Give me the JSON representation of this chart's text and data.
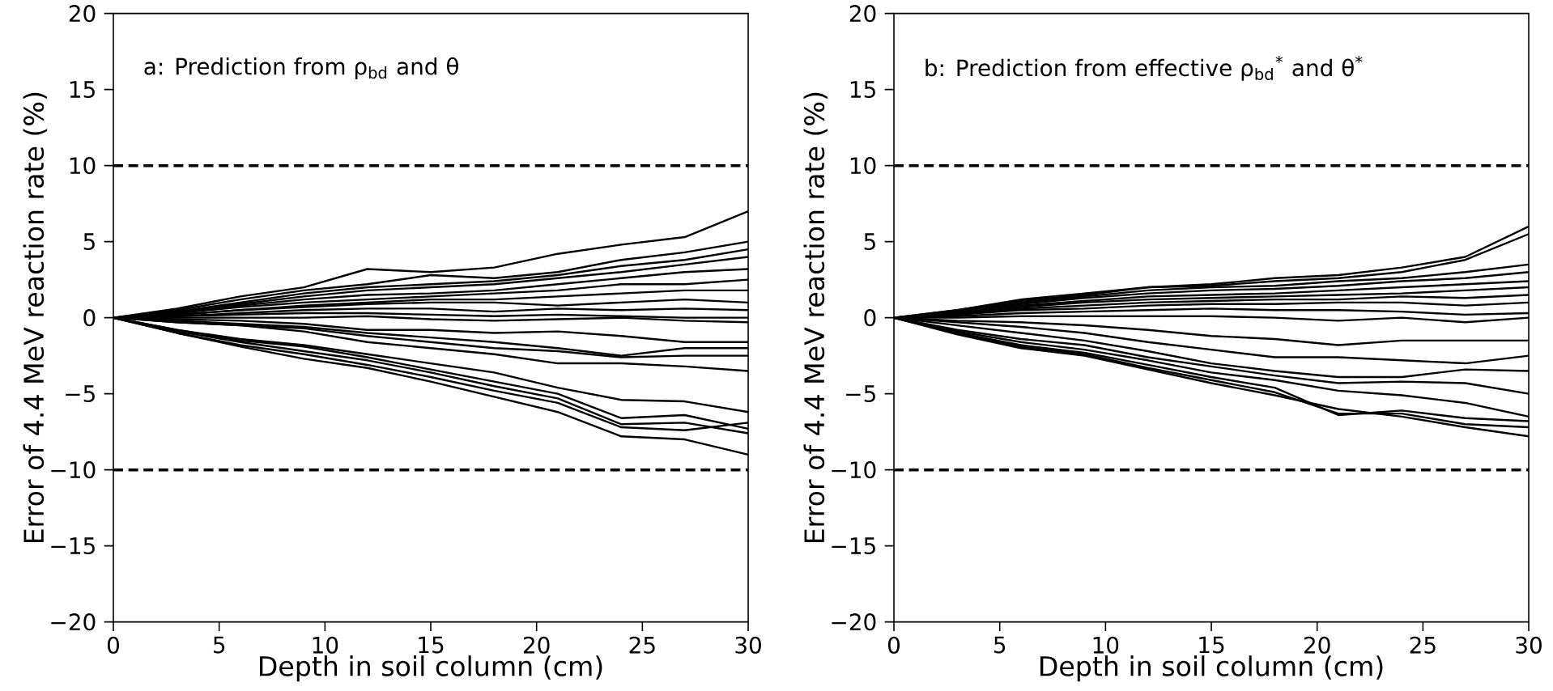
{
  "chart_data": [
    {
      "type": "line",
      "color": "#000000",
      "line_style": "solid",
      "xlabel": "Depth in soil column (cm)",
      "ylabel": "Error of 4.4 MeV reaction rate (%)",
      "annotations": [
        "a: Prediction from ρ$_{bd}$ and θ"
      ],
      "xlim": [
        0,
        30
      ],
      "ylim": [
        -20,
        20
      ],
      "xticks": [
        0,
        5,
        10,
        15,
        20,
        25,
        30
      ],
      "yticks": [
        {
          "value": -20,
          "label": "−20"
        },
        {
          "value": -15,
          "label": "−15"
        },
        {
          "value": -10,
          "label": "−10"
        },
        {
          "value": -5,
          "label": "−5"
        },
        0,
        5,
        10,
        15,
        20
      ],
      "ref_lines": [
        {
          "axis": "y",
          "value": 10,
          "line_style": "dashed"
        },
        {
          "axis": "y",
          "value": -10,
          "line_style": "dashed"
        }
      ],
      "x": [
        0,
        3,
        6,
        9,
        12,
        15,
        18,
        21,
        24,
        27,
        30
      ],
      "series": [
        {
          "values": [
            0,
            0.6,
            1.4,
            2.0,
            3.2,
            3.0,
            3.3,
            4.2,
            4.8,
            5.3,
            7.0
          ]
        },
        {
          "values": [
            0,
            0.5,
            1.2,
            1.8,
            2.2,
            2.8,
            2.6,
            3.0,
            3.8,
            4.3,
            5.0
          ]
        },
        {
          "values": [
            0,
            0.4,
            1.0,
            1.6,
            2.0,
            2.2,
            2.4,
            2.8,
            3.4,
            3.8,
            4.5
          ]
        },
        {
          "values": [
            0,
            0.4,
            0.9,
            1.4,
            1.8,
            2.0,
            2.2,
            2.6,
            3.0,
            3.5,
            4.0
          ]
        },
        {
          "values": [
            0,
            0.3,
            0.8,
            1.2,
            1.5,
            1.6,
            1.8,
            2.2,
            2.6,
            3.0,
            3.2
          ]
        },
        {
          "values": [
            0,
            0.3,
            0.7,
            1.0,
            1.2,
            1.4,
            1.6,
            1.8,
            2.2,
            2.2,
            2.5
          ]
        },
        {
          "values": [
            0,
            0.2,
            0.5,
            0.8,
            1.0,
            1.2,
            1.2,
            1.4,
            1.6,
            1.8,
            1.8
          ]
        },
        {
          "values": [
            0,
            0.2,
            0.5,
            0.7,
            0.9,
            1.0,
            1.0,
            0.8,
            1.0,
            1.2,
            1.0
          ]
        },
        {
          "values": [
            0,
            0.1,
            0.3,
            0.5,
            0.6,
            0.6,
            0.4,
            0.6,
            0.5,
            0.6,
            0.5
          ]
        },
        {
          "values": [
            0,
            0.1,
            0.2,
            0.3,
            0.3,
            0.2,
            0.1,
            0.2,
            0.1,
            0.0,
            0.0
          ]
        },
        {
          "values": [
            0,
            0.0,
            0.0,
            0.0,
            0.1,
            -0.1,
            -0.2,
            -0.1,
            0.0,
            -0.2,
            -0.3
          ]
        },
        {
          "values": [
            0,
            -0.1,
            -0.2,
            -0.4,
            -0.8,
            -0.8,
            -1.0,
            -0.9,
            -1.2,
            -1.6,
            -1.6
          ]
        },
        {
          "values": [
            0,
            -0.2,
            -0.4,
            -0.6,
            -1.0,
            -1.3,
            -1.6,
            -2.0,
            -2.5,
            -2.0,
            -2.0
          ]
        },
        {
          "values": [
            0,
            -0.3,
            -0.5,
            -0.7,
            -1.2,
            -1.6,
            -2.0,
            -2.2,
            -2.6,
            -2.5,
            -2.5
          ]
        },
        {
          "values": [
            0,
            -0.3,
            -0.5,
            -0.9,
            -1.6,
            -2.0,
            -2.4,
            -3.0,
            -3.0,
            -3.2,
            -3.5
          ]
        },
        {
          "values": [
            0,
            -0.8,
            -1.4,
            -1.8,
            -2.4,
            -3.0,
            -3.6,
            -4.6,
            -5.4,
            -5.5,
            -6.2
          ]
        },
        {
          "values": [
            0,
            -0.8,
            -1.5,
            -1.9,
            -2.6,
            -3.4,
            -4.2,
            -5.0,
            -6.6,
            -6.4,
            -7.3
          ]
        },
        {
          "values": [
            0,
            -0.9,
            -1.6,
            -2.2,
            -2.8,
            -3.6,
            -4.5,
            -5.3,
            -7.0,
            -6.9,
            -7.6
          ]
        },
        {
          "values": [
            0,
            -1.0,
            -1.8,
            -2.4,
            -3.1,
            -3.9,
            -4.8,
            -5.6,
            -7.2,
            -7.4,
            -6.9
          ]
        },
        {
          "values": [
            0,
            -1.0,
            -1.9,
            -2.7,
            -3.3,
            -4.2,
            -5.2,
            -6.2,
            -7.8,
            -8.0,
            -9.0
          ]
        }
      ]
    },
    {
      "type": "line",
      "color": "#000000",
      "line_style": "solid",
      "xlabel": "Depth in soil column (cm)",
      "ylabel": "Error of 4.4 MeV reaction rate (%)",
      "annotations": [
        "b: Prediction from effective ρ$_{bd}$$^{*}$ and θ$^{*}$"
      ],
      "xlim": [
        0,
        30
      ],
      "ylim": [
        -20,
        20
      ],
      "xticks": [
        0,
        5,
        10,
        15,
        20,
        25,
        30
      ],
      "yticks": [
        {
          "value": -20,
          "label": "−20"
        },
        {
          "value": -15,
          "label": "−15"
        },
        {
          "value": -10,
          "label": "−10"
        },
        {
          "value": -5,
          "label": "−5"
        },
        0,
        5,
        10,
        15,
        20
      ],
      "ref_lines": [
        {
          "axis": "y",
          "value": 10,
          "line_style": "dashed"
        },
        {
          "axis": "y",
          "value": -10,
          "line_style": "dashed"
        }
      ],
      "x": [
        0,
        3,
        6,
        9,
        12,
        15,
        18,
        21,
        24,
        27,
        30
      ],
      "series": [
        {
          "values": [
            0,
            0.5,
            1.2,
            1.6,
            2.0,
            2.2,
            2.6,
            2.8,
            3.3,
            4.0,
            6.0
          ]
        },
        {
          "values": [
            0,
            0.5,
            1.1,
            1.5,
            2.0,
            2.1,
            2.4,
            2.6,
            3.0,
            3.8,
            5.5
          ]
        },
        {
          "values": [
            0,
            0.4,
            1.0,
            1.4,
            1.8,
            2.0,
            2.1,
            2.4,
            2.6,
            3.0,
            3.5
          ]
        },
        {
          "values": [
            0,
            0.4,
            0.9,
            1.3,
            1.6,
            1.8,
            1.9,
            2.1,
            2.4,
            2.6,
            3.0
          ]
        },
        {
          "values": [
            0,
            0.3,
            0.8,
            1.1,
            1.4,
            1.5,
            1.6,
            1.8,
            2.0,
            2.2,
            2.4
          ]
        },
        {
          "values": [
            0,
            0.3,
            0.7,
            1.0,
            1.2,
            1.3,
            1.4,
            1.5,
            1.6,
            1.8,
            2.0
          ]
        },
        {
          "values": [
            0,
            0.2,
            0.6,
            0.8,
            1.0,
            1.1,
            1.2,
            1.2,
            1.4,
            1.3,
            1.5
          ]
        },
        {
          "values": [
            0,
            0.2,
            0.5,
            0.6,
            0.8,
            0.9,
            0.9,
            1.0,
            1.0,
            0.8,
            1.0
          ]
        },
        {
          "values": [
            0,
            0.1,
            0.3,
            0.4,
            0.5,
            0.6,
            0.5,
            0.5,
            0.4,
            0.2,
            0.3
          ]
        },
        {
          "values": [
            0,
            0.0,
            0.1,
            0.1,
            0.1,
            0.1,
            0.0,
            -0.2,
            0.0,
            -0.3,
            0.0
          ]
        },
        {
          "values": [
            0,
            -0.2,
            -0.3,
            -0.5,
            -0.8,
            -1.2,
            -1.4,
            -1.8,
            -1.5,
            -1.5,
            -1.5
          ]
        },
        {
          "values": [
            0,
            -0.3,
            -0.6,
            -1.0,
            -1.6,
            -2.1,
            -2.6,
            -2.6,
            -2.8,
            -3.0,
            -2.5
          ]
        },
        {
          "values": [
            0,
            -0.5,
            -1.0,
            -1.5,
            -2.2,
            -3.0,
            -3.5,
            -3.9,
            -3.9,
            -3.4,
            -3.5
          ]
        },
        {
          "values": [
            0,
            -0.8,
            -1.4,
            -1.8,
            -2.6,
            -3.2,
            -3.8,
            -4.3,
            -4.2,
            -4.3,
            -5.0
          ]
        },
        {
          "values": [
            0,
            -0.9,
            -1.6,
            -2.1,
            -2.8,
            -3.6,
            -4.1,
            -4.8,
            -5.1,
            -5.6,
            -6.5
          ]
        },
        {
          "values": [
            0,
            -1.0,
            -1.8,
            -2.3,
            -3.1,
            -3.9,
            -4.6,
            -6.4,
            -6.1,
            -6.6,
            -6.8
          ]
        },
        {
          "values": [
            0,
            -1.0,
            -1.9,
            -2.4,
            -3.3,
            -4.1,
            -4.9,
            -6.3,
            -6.3,
            -7.0,
            -7.2
          ]
        },
        {
          "values": [
            0,
            -1.1,
            -2.0,
            -2.5,
            -3.4,
            -4.3,
            -5.1,
            -6.0,
            -6.5,
            -7.2,
            -7.8
          ]
        }
      ]
    }
  ]
}
